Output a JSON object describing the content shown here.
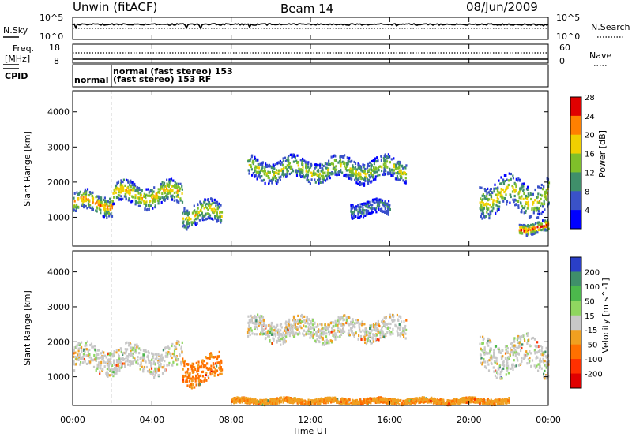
{
  "header": {
    "station": "Unwin (fitACF)",
    "beam": "Beam 14",
    "date": "08/Jun/2009"
  },
  "noise_panel": {
    "left_label": "N.Sky",
    "right_label": "N.Search",
    "left_ticks": [
      "10^5",
      "10^0"
    ],
    "right_ticks": [
      "10^5",
      "10^0"
    ]
  },
  "freq_panel": {
    "left_label_line1": "Freq.",
    "left_label_line2": "[MHz]",
    "right_label": "Nave",
    "left_ticks": [
      "18",
      "8"
    ],
    "right_ticks": [
      "60",
      "0"
    ]
  },
  "cpid_panel": {
    "label": "CPID",
    "segments": [
      {
        "text": "normal"
      },
      {
        "text": "normal (fast stereo) 153"
      },
      {
        "text": "(fast stereo) 153 RF"
      }
    ]
  },
  "chart_data": [
    {
      "type": "heatmap",
      "title": "",
      "xlabel": "Time UT",
      "ylabel": "Slant Range [km]",
      "colorbar_label": "Power [dB]",
      "xlim": [
        0,
        24
      ],
      "ylim": [
        180,
        4600
      ],
      "x_ticks": [
        "00:00",
        "04:00",
        "08:00",
        "12:00",
        "16:00",
        "20:00",
        "00:00"
      ],
      "y_ticks": [
        "1000",
        "2000",
        "3000",
        "4000"
      ],
      "color_levels": [
        "4",
        "8",
        "12",
        "16",
        "20",
        "24",
        "28"
      ],
      "colors": [
        "#0000ff",
        "#3a52c8",
        "#3f8f6a",
        "#7fc02a",
        "#f0d000",
        "#ff8000",
        "#e00000"
      ],
      "features": [
        {
          "t_start": 0.0,
          "t_end": 2.0,
          "range_center": 1400,
          "range_width": 550,
          "peak_dB": 22
        },
        {
          "t_start": 2.0,
          "t_end": 5.5,
          "range_center": 1650,
          "range_width": 600,
          "peak_dB": 20
        },
        {
          "t_start": 5.5,
          "t_end": 7.5,
          "range_center": 1100,
          "range_width": 600,
          "peak_dB": 18
        },
        {
          "t_start": 8.8,
          "t_end": 16.8,
          "range_center": 2350,
          "range_width": 600,
          "peak_dB": 16
        },
        {
          "t_start": 14.0,
          "t_end": 16.0,
          "range_center": 1250,
          "range_width": 400,
          "peak_dB": 10
        },
        {
          "t_start": 20.5,
          "t_end": 24.0,
          "range_center": 1600,
          "range_width": 900,
          "peak_dB": 18
        },
        {
          "t_start": 22.5,
          "t_end": 24.0,
          "range_center": 700,
          "range_width": 300,
          "peak_dB": 26
        }
      ]
    },
    {
      "type": "heatmap",
      "title": "",
      "xlabel": "Time UT",
      "ylabel": "Slant Range [km]",
      "colorbar_label": "Velocity [m s^-1]",
      "xlim": [
        0,
        24
      ],
      "ylim": [
        180,
        4600
      ],
      "x_ticks": [
        "00:00",
        "04:00",
        "08:00",
        "12:00",
        "16:00",
        "20:00",
        "00:00"
      ],
      "y_ticks": [
        "1000",
        "2000",
        "3000",
        "4000"
      ],
      "color_levels": [
        "200",
        "100",
        "50",
        "15",
        "-15",
        "-50",
        "-100",
        "-200"
      ],
      "colors": [
        "#2a3fc8",
        "#3f8f6a",
        "#4cb84c",
        "#8fd660",
        "#c8c8c8",
        "#f0a020",
        "#ff7000",
        "#ff3000",
        "#e00000"
      ],
      "features": [
        {
          "t_start": 0.0,
          "t_end": 5.5,
          "range_center": 1500,
          "range_width": 700,
          "velocity": 0
        },
        {
          "t_start": 5.5,
          "t_end": 7.5,
          "range_center": 1200,
          "range_width": 700,
          "velocity": -60
        },
        {
          "t_start": 8.8,
          "t_end": 16.8,
          "range_center": 2350,
          "range_width": 600,
          "velocity": 0
        },
        {
          "t_start": 20.5,
          "t_end": 24.0,
          "range_center": 1600,
          "range_width": 900,
          "velocity": 0
        },
        {
          "t_start": 8.0,
          "t_end": 22.0,
          "range_center": 300,
          "range_width": 150,
          "velocity": -40
        }
      ]
    }
  ],
  "colors": {
    "axis": "#000000",
    "background": "#ffffff",
    "missing": "#ffffff"
  }
}
